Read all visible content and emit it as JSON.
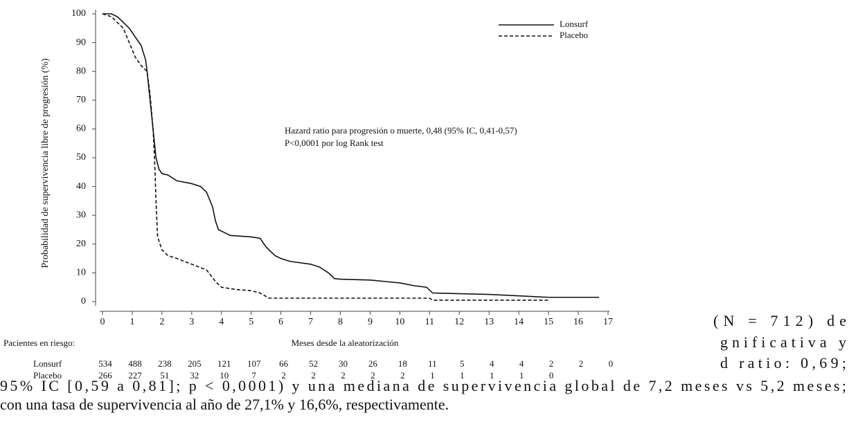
{
  "chart_data": {
    "type": "line",
    "ylabel": "Probabilidad de supervivencia libre de progresión (%)",
    "xlabel": "Meses desde la aleatorización",
    "annotations": [
      "Hazard ratio para progresión o muerte, 0,48 (95% IC, 0,41-0,57)",
      "P<0,0001 por log Rank test"
    ],
    "xlim": [
      0,
      17
    ],
    "ylim": [
      0,
      100
    ],
    "xticks": [
      0,
      1,
      2,
      3,
      4,
      5,
      6,
      7,
      8,
      9,
      10,
      11,
      12,
      13,
      14,
      15,
      16,
      17
    ],
    "yticks": [
      0,
      10,
      20,
      30,
      40,
      50,
      60,
      70,
      80,
      90,
      100
    ],
    "legend": "upper right",
    "series": [
      {
        "name": "Lonsurf",
        "color": "#111111",
        "style": "solid",
        "x": [
          0,
          0.3,
          0.5,
          0.7,
          0.9,
          1.1,
          1.3,
          1.45,
          1.5,
          1.6,
          1.7,
          1.8,
          1.9,
          2.0,
          2.2,
          2.5,
          3.0,
          3.3,
          3.5,
          3.7,
          3.8,
          3.9,
          4.0,
          4.3,
          5.0,
          5.3,
          5.5,
          5.8,
          6.0,
          6.3,
          7.0,
          7.3,
          7.6,
          7.8,
          8.0,
          9.0,
          9.5,
          10.0,
          10.5,
          10.9,
          11.1,
          13.0,
          15.0,
          16.7
        ],
        "values": [
          100,
          100,
          99,
          97,
          95,
          92,
          89,
          84,
          80,
          70,
          60,
          50,
          46,
          44.5,
          44,
          42,
          41,
          40,
          38,
          33,
          28,
          25,
          24.5,
          23,
          22.5,
          22,
          19,
          16,
          15,
          14,
          13,
          12,
          10,
          8,
          7.8,
          7.5,
          7,
          6.5,
          5.5,
          5,
          3,
          2.5,
          1.5,
          1.5
        ]
      },
      {
        "name": "Placebo",
        "color": "#111111",
        "style": "dashed",
        "x": [
          0,
          0.3,
          0.5,
          0.7,
          0.9,
          1.1,
          1.3,
          1.5,
          1.6,
          1.7,
          1.75,
          1.8,
          1.85,
          1.9,
          2.0,
          2.2,
          2.5,
          3.0,
          3.5,
          3.8,
          4.0,
          4.5,
          5.0,
          5.3,
          5.6,
          11.0,
          11.1,
          15.0
        ],
        "values": [
          100,
          99,
          97,
          95,
          90,
          85,
          82,
          80,
          72,
          60,
          50,
          35,
          23,
          21,
          18,
          16,
          15,
          13,
          11,
          7,
          5,
          4.2,
          3.8,
          3,
          1.2,
          1.2,
          0.5,
          0.5
        ]
      }
    ]
  },
  "risk_table": {
    "title": "Pacientes en riesgo:",
    "rows": [
      {
        "label": "Lonsurf",
        "counts": [
          "534",
          "488",
          "238",
          "205",
          "121",
          "107",
          "66",
          "52",
          "30",
          "26",
          "18",
          "11",
          "5",
          "4",
          "4",
          "2",
          "2",
          "0"
        ]
      },
      {
        "label": "Placebo",
        "counts": [
          "266",
          "227",
          "51",
          "32",
          "10",
          "7",
          "2",
          "2",
          "2",
          "2",
          "2",
          "1",
          "1",
          "1",
          "1",
          "0"
        ]
      }
    ]
  },
  "document": {
    "side_lines": [
      "(N = 712) de",
      "gnificativa y",
      "d ratio: 0,69;"
    ],
    "lines": [
      "95% IC [0,59 a 0,81]; p < 0,0001) y una mediana de supervivencia global de 7,2 meses vs 5,2 meses;",
      "con una tasa de supervivencia al año de 27,1% y 16,6%, respectivamente."
    ]
  }
}
